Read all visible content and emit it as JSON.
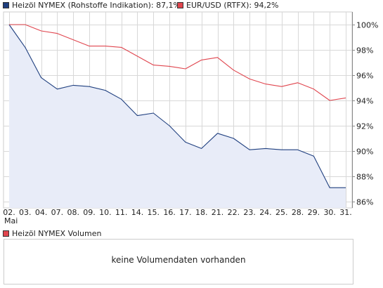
{
  "legend": {
    "series1_label": "Heizöl NYMEX (Rohstoffe Indikation): 87,1%",
    "series2_label": "EUR/USD (RTFX): 94,2%"
  },
  "volume": {
    "legend_label": "Heizöl NYMEX Volumen",
    "message": "keine Volumendaten vorhanden"
  },
  "colors": {
    "series1": "#1f3f7f",
    "series1_fill": "#e8ecf8",
    "series2": "#e0454e",
    "grid": "#d8d8d8",
    "axis": "#888888"
  },
  "chart_data": {
    "type": "line",
    "categories": [
      "02.",
      "03.",
      "04.",
      "07.",
      "08.",
      "09.",
      "10.",
      "11.",
      "14.",
      "15.",
      "16.",
      "17.",
      "18.",
      "21.",
      "22.",
      "23.",
      "24.",
      "25.",
      "28.",
      "29.",
      "30.",
      "31."
    ],
    "x_sublabel": "Mai",
    "ylim": [
      85.5,
      101.0
    ],
    "y_ticks": [
      "86%",
      "88%",
      "90%",
      "92%",
      "94%",
      "96%",
      "98%",
      "100%"
    ],
    "y_tick_values": [
      86,
      88,
      90,
      92,
      94,
      96,
      98,
      100
    ],
    "grid": true,
    "series": [
      {
        "name": "Heizöl NYMEX (Rohstoffe Indikation)",
        "values": [
          100.0,
          98.2,
          95.8,
          94.9,
          95.2,
          95.1,
          94.8,
          94.1,
          92.8,
          93.0,
          92.0,
          90.7,
          90.2,
          91.4,
          91.0,
          90.1,
          90.2,
          90.1,
          90.1,
          89.6,
          87.1,
          87.1
        ],
        "area": true
      },
      {
        "name": "EUR/USD (RTFX)",
        "values": [
          100.0,
          100.0,
          99.5,
          99.3,
          98.8,
          98.3,
          98.3,
          98.2,
          97.5,
          96.8,
          96.7,
          96.5,
          97.2,
          97.4,
          96.4,
          95.7,
          95.3,
          95.1,
          95.4,
          94.9,
          94.0,
          94.2
        ],
        "area": false
      }
    ]
  }
}
